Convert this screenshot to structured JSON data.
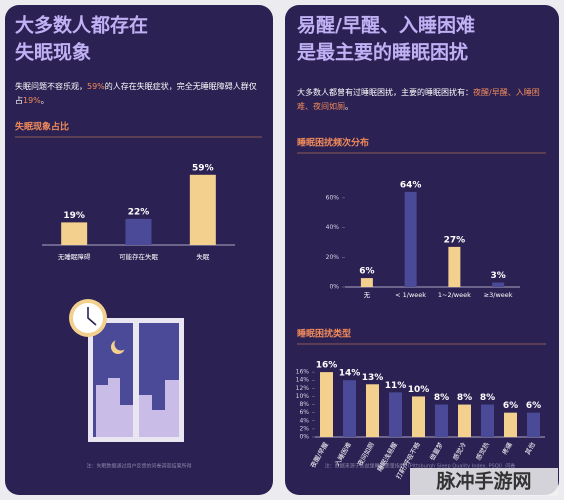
{
  "left": {
    "title": [
      "大多数人都存在",
      "失眠现象"
    ],
    "body": [
      [
        {
          "text": "失眠问题不容乐观，"
        },
        {
          "text": "59%",
          "color": "#f08a5a"
        },
        {
          "text": "的人存在失眠症状，完全无睡眠障碍人群仅"
        }
      ],
      [
        {
          "text": "占"
        },
        {
          "text": "19%",
          "color": "#f08a5a"
        },
        {
          "text": "。"
        }
      ]
    ],
    "section": "失眠现象占比",
    "note": "注：失眠数据通过用户反馈的问卷调查结果所得"
  },
  "right": {
    "title": [
      "易醒/早醒、入睡困难",
      "是最主要的睡眠困扰"
    ],
    "body": [
      [
        {
          "text": "大多数人都曾有过睡眠困扰，主要的睡眠困扰有："
        },
        {
          "text": "夜醒/早醒、入睡困",
          "color": "#f08a5a"
        }
      ],
      [
        {
          "text": "难、夜间如厕",
          "color": "#f08a5a"
        },
        {
          "text": "。"
        }
      ]
    ],
    "sections": [
      "睡眠困扰频次分布",
      "睡眠困扰类型"
    ],
    "note": "注：数据来源于匹兹堡睡眠质量指数（Pittsburgh Sleep Quality Index, PSQI）问卷"
  },
  "watermark": "脉冲手游网",
  "chart_data": [
    {
      "type": "bar",
      "categories": [
        "无睡眠障碍",
        "可能存在失眠",
        "失眠"
      ],
      "values": [
        19,
        22,
        59
      ],
      "value_labels": [
        "19%",
        "22%",
        "59%"
      ],
      "colors": [
        "#f3d08e",
        "#4b4a98",
        "#f3d08e"
      ]
    },
    {
      "type": "bar",
      "categories": [
        "无",
        "< 1/week",
        "1~2/week",
        "≥3/week"
      ],
      "values": [
        6,
        64,
        27,
        3
      ],
      "value_labels": [
        "6%",
        "64%",
        "27%",
        "3%"
      ],
      "colors": [
        "#f3d08e",
        "#4b4a98",
        "#f3d08e",
        "#4b4a98"
      ],
      "ylim": [
        0,
        70
      ],
      "yticks": [
        {
          "value": 0,
          "label": "0%"
        },
        {
          "value": 20,
          "label": "20%"
        },
        {
          "value": 40,
          "label": "40%"
        },
        {
          "value": 60,
          "label": "60%"
        }
      ]
    },
    {
      "type": "bar",
      "categories": [
        "夜醒/早醒",
        "入睡困难",
        "夜间如厕",
        "睡眠浅易醒",
        "打鼾/呼吸不畅",
        "做噩梦",
        "感觉冷",
        "感觉热",
        "疼痛",
        "其他"
      ],
      "values": [
        16,
        14,
        13,
        11,
        10,
        8,
        8,
        8,
        6,
        6
      ],
      "value_labels": [
        "16%",
        "14%",
        "13%",
        "11%",
        "10%",
        "8%",
        "8%",
        "8%",
        "6%",
        "6%"
      ],
      "colors": [
        "#f3d08e",
        "#4b4a98",
        "#f3d08e",
        "#4b4a98",
        "#f3d08e",
        "#4b4a98",
        "#f3d08e",
        "#4b4a98",
        "#f3d08e",
        "#4b4a98"
      ],
      "ylim": [
        0,
        18
      ],
      "yticks": [
        {
          "value": 0,
          "label": "0%"
        },
        {
          "value": 2,
          "label": "2%"
        },
        {
          "value": 4,
          "label": "4%"
        },
        {
          "value": 6,
          "label": "6%"
        },
        {
          "value": 8,
          "label": "8%"
        },
        {
          "value": 10,
          "label": "10%"
        },
        {
          "value": 12,
          "label": "12%"
        },
        {
          "value": 14,
          "label": "14%"
        },
        {
          "value": 16,
          "label": "16%"
        }
      ]
    }
  ]
}
